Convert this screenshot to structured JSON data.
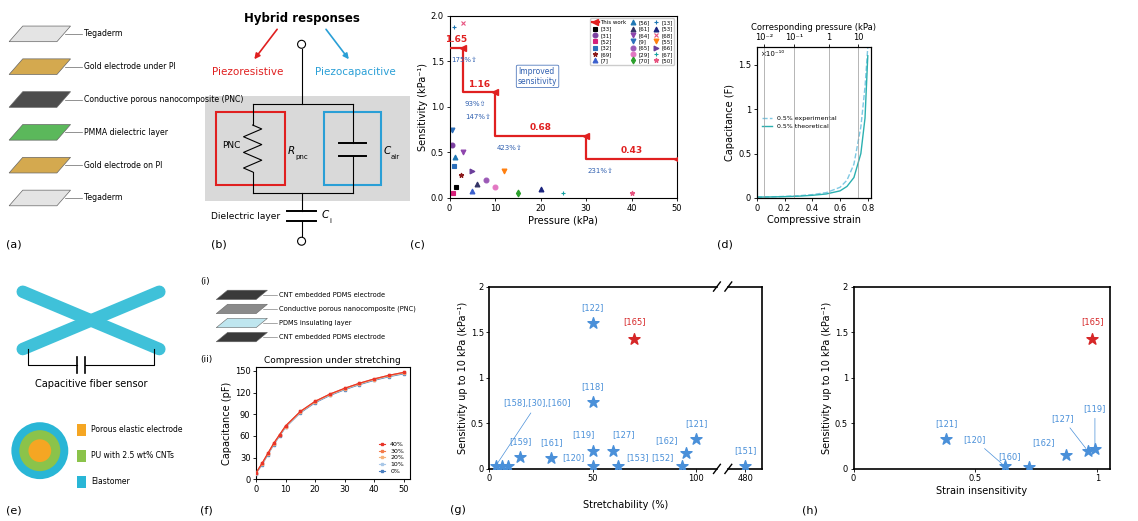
{
  "diagrams": {
    "a": {
      "panel_label": "(a)",
      "layers": [
        "Tegaderm",
        "Gold electrode under PI",
        "Conductive porous nanocomposite (PNC)",
        "PMMA dielectric layer",
        "Gold electrode on PI",
        "Tegaderm"
      ]
    },
    "b": {
      "panel_label": "(b)",
      "title": "Hybrid responses",
      "left_branch": "Piezoresistive",
      "right_branch": "Piezocapacitive",
      "resistor_box": "PNC",
      "resistor": {
        "symbol": "R",
        "subscript": "pnc"
      },
      "capacitor": {
        "symbol": "C",
        "subscript": "air"
      },
      "bottom_layer": "Dielectric layer",
      "bottom_capacitor": {
        "symbol": "C",
        "subscript": "i"
      }
    },
    "e": {
      "panel_label": "(e)",
      "title": "Capacitive fiber sensor",
      "cross_section": [
        {
          "name": "Porous elastic electrode",
          "color": "#f5a623"
        },
        {
          "name": "PU with 2.5 wt% CNTs",
          "color": "#8bc34a"
        },
        {
          "name": "Elastomer",
          "color": "#29b6d6"
        }
      ]
    },
    "f": {
      "panel_label": "(f)",
      "sub_label": "(i)",
      "layers": [
        "CNT embedded PDMS electrode",
        "Conductive porous nanocomposite (PNC)",
        "PDMS insulating layer",
        "CNT embedded PDMS electrode"
      ]
    }
  },
  "chart_data": [
    {
      "panel_label": "(c)",
      "type": "scatter",
      "xlabel": "Pressure (kPa)",
      "ylabel": "Sensitivity (kPa⁻¹)",
      "xlim": [
        0,
        50
      ],
      "xticks": [
        0,
        10,
        20,
        30,
        40,
        50
      ],
      "ylim": [
        0,
        2.0
      ],
      "yticks": [
        {
          "value": 0,
          "label": "0.0"
        },
        {
          "value": 0.5,
          "label": "0.5"
        },
        {
          "value": 1.0,
          "label": "1.0"
        },
        {
          "value": 1.5,
          "label": "1.5"
        },
        {
          "value": 2.0,
          "label": "2.0"
        }
      ],
      "legend": "upper right",
      "annotations": [
        {
          "text": "Improved\nsensitivity"
        }
      ],
      "series": [
        {
          "name": "This work",
          "type": "step",
          "color": "#e02020",
          "marker": "triangle_left",
          "data_labels": true,
          "segments": [
            {
              "from": 0,
              "to": 3,
              "value": 1.65,
              "improvement": [
                "175%⇧"
              ]
            },
            {
              "from": 3,
              "to": 10,
              "value": 1.16,
              "improvement": [
                "93%⇧",
                "147%⇧"
              ]
            },
            {
              "from": 10,
              "to": 30,
              "value": 0.68,
              "improvement": [
                "423%⇧"
              ]
            },
            {
              "from": 30,
              "to": 50,
              "value": 0.43,
              "improvement": [
                "231%⇧"
              ]
            }
          ]
        },
        {
          "name": "[33]",
          "color": "#000000",
          "marker": "square",
          "x": [
            1.5
          ],
          "values": [
            0.12
          ]
        },
        {
          "name": "[31]",
          "color": "#7b3fa0",
          "marker": "circle",
          "x": [
            0.5
          ],
          "values": [
            0.58
          ]
        },
        {
          "name": "[52]",
          "color": "#d6207a",
          "marker": "square",
          "x": [
            0.8
          ],
          "values": [
            0.05
          ]
        },
        {
          "name": "[32]",
          "color": "#2c6fbb",
          "marker": "square",
          "x": [
            1.0
          ],
          "values": [
            0.35
          ]
        },
        {
          "name": "[69]",
          "color": "#8b1a1a",
          "marker": "star",
          "x": [
            2.5
          ],
          "values": [
            0.25
          ]
        },
        {
          "name": "[7]",
          "color": "#3a5fcd",
          "marker": "triangle_up",
          "x": [
            5
          ],
          "values": [
            0.08
          ]
        },
        {
          "name": "[56]",
          "color": "#1f77b4",
          "marker": "triangle_up",
          "x": [
            1.2
          ],
          "values": [
            0.45
          ]
        },
        {
          "name": "[61]",
          "color": "#333366",
          "marker": "triangle_up",
          "x": [
            6
          ],
          "values": [
            0.15
          ]
        },
        {
          "name": "[64]",
          "color": "#8e44ad",
          "marker": "triangle_down",
          "x": [
            3
          ],
          "values": [
            0.5
          ]
        },
        {
          "name": "[9]",
          "color": "#2c6fbb",
          "marker": "triangle_down",
          "x": [
            0.5
          ],
          "values": [
            0.75
          ]
        },
        {
          "name": "[65]",
          "color": "#9b59b6",
          "marker": "circle",
          "x": [
            8
          ],
          "values": [
            0.2
          ]
        },
        {
          "name": "[29]",
          "color": "#e377c2",
          "marker": "circle",
          "x": [
            10
          ],
          "values": [
            0.12
          ]
        },
        {
          "name": "[70]",
          "color": "#2ca02c",
          "marker": "diamond",
          "x": [
            15
          ],
          "values": [
            0.05
          ]
        },
        {
          "name": "[13]",
          "color": "#1f77b4",
          "marker": "plus",
          "x": [
            1
          ],
          "values": [
            1.88
          ]
        },
        {
          "name": "[53]",
          "color": "#1a237e",
          "marker": "triangle_up",
          "x": [
            20
          ],
          "values": [
            0.1
          ]
        },
        {
          "name": "[68]",
          "color": "#e75480",
          "marker": "x",
          "x": [
            3
          ],
          "values": [
            1.92
          ]
        },
        {
          "name": "[55]",
          "color": "#ff7f0e",
          "marker": "triangle_down",
          "x": [
            12
          ],
          "values": [
            0.3
          ]
        },
        {
          "name": "[66]",
          "color": "#6a3d9a",
          "marker": "triangle_right",
          "x": [
            5
          ],
          "values": [
            0.3
          ]
        },
        {
          "name": "[67]",
          "color": "#17a2a2",
          "marker": "plus",
          "x": [
            25
          ],
          "values": [
            0.05
          ]
        },
        {
          "name": "[50]",
          "color": "#e75480",
          "marker": "star",
          "x": [
            40
          ],
          "values": [
            0.05
          ]
        }
      ]
    },
    {
      "panel_label": "(d)",
      "type": "line",
      "xlabel": "Compressive strain",
      "ylabel": "Capacitance (F)",
      "xlim": [
        0,
        0.82
      ],
      "xticks": [
        0,
        0.2,
        0.4,
        0.6,
        0.8
      ],
      "ylim": [
        0,
        1.7e-10
      ],
      "yticks": [
        {
          "value": 0,
          "label": "0"
        },
        {
          "value": 5e-11,
          "label": "0.5"
        },
        {
          "value": 1e-10,
          "label": "1"
        },
        {
          "value": 1.5e-10,
          "label": "1.5"
        }
      ],
      "multiplier": "×10⁻¹⁰",
      "top_xlabel": "Corresponding pressure (kPa)",
      "top_xticks": [
        {
          "value": 0.05,
          "label": "10⁻²"
        },
        {
          "value": 0.27,
          "label": "10⁻¹"
        },
        {
          "value": 0.52,
          "label": "1"
        },
        {
          "value": 0.73,
          "label": "10"
        }
      ],
      "grid": true,
      "legend": "center left",
      "x": [
        0,
        0.1,
        0.2,
        0.3,
        0.4,
        0.5,
        0.6,
        0.65,
        0.7,
        0.75,
        0.78,
        0.8
      ],
      "series": [
        {
          "name": "0.5% experimental",
          "color": "#7ec8e3",
          "line_style": "dashed",
          "values": [
            1e-12,
            1.3e-12,
            1.8e-12,
            2.5e-12,
            3.8e-12,
            6e-12,
            1.2e-11,
            2e-11,
            3.8e-11,
            8e-11,
            1.25e-10,
            1.7e-10
          ]
        },
        {
          "name": "0.5% theoretical",
          "color": "#2bb0b0",
          "line_style": "solid",
          "values": [
            1e-12,
            1.2e-12,
            1.5e-12,
            2e-12,
            3e-12,
            4.5e-12,
            8e-12,
            1.3e-11,
            2.3e-11,
            5e-11,
            9e-11,
            1.6e-10
          ]
        }
      ]
    },
    {
      "panel_label": "(ii)",
      "type": "line",
      "title": "Compression under stretching",
      "ylabel": "Capacitance (pF)",
      "xlim": [
        0,
        52
      ],
      "xticks": [
        0,
        10,
        20,
        30,
        40,
        50
      ],
      "ylim": [
        0,
        155
      ],
      "yticks": [
        0,
        30,
        60,
        90,
        120,
        150
      ],
      "legend": "lower right",
      "marker": "square",
      "x": [
        0,
        2,
        4,
        6,
        8,
        10,
        15,
        20,
        25,
        30,
        35,
        40,
        45,
        50
      ],
      "series": [
        {
          "name": "40%",
          "color": "#e8352a",
          "values": [
            9,
            22,
            36,
            50,
            62,
            74,
            94,
            108,
            118,
            126,
            133,
            139,
            144,
            148
          ]
        },
        {
          "name": "30%",
          "color": "#f47c4c",
          "values": [
            9,
            22,
            36,
            50,
            62,
            74,
            94,
            108,
            118,
            126,
            133,
            139,
            144,
            148
          ]
        },
        {
          "name": "20%",
          "color": "#f7b27a",
          "values": [
            9,
            21,
            35,
            49,
            61,
            73,
            93,
            107,
            117,
            125,
            132,
            138,
            143,
            147
          ]
        },
        {
          "name": "10%",
          "color": "#a9c8e8",
          "values": [
            8,
            21,
            35,
            49,
            61,
            73,
            93,
            107,
            117,
            125,
            132,
            138,
            143,
            147
          ]
        },
        {
          "name": "0%",
          "color": "#4a7fc0",
          "values": [
            8,
            20,
            34,
            48,
            60,
            72,
            92,
            106,
            116,
            124,
            131,
            137,
            142,
            146
          ]
        }
      ]
    },
    {
      "panel_label": "(g)",
      "type": "scatter",
      "xlabel": "Stretchability (%)",
      "ylabel": "Sensitivity up to 10 kPa (kPa⁻¹)",
      "xlim": [
        0,
        110
      ],
      "xticks": [
        0,
        50,
        100
      ],
      "xlim_after_break": [
        470,
        490
      ],
      "xticks_after_break": [
        480
      ],
      "ylim": [
        0,
        2
      ],
      "yticks": [
        0,
        0.5,
        1,
        1.5,
        2
      ],
      "marker": "star",
      "points": [
        {
          "label": "[122]",
          "color": "#4a90d9",
          "x": [
            50
          ],
          "values": [
            1.6
          ]
        },
        {
          "label": "[165]",
          "color": "#d62728",
          "x": [
            70
          ],
          "values": [
            1.43
          ]
        },
        {
          "label": "[118]",
          "color": "#4a90d9",
          "x": [
            50
          ],
          "values": [
            0.73
          ]
        },
        {
          "label": "[121]",
          "color": "#4a90d9",
          "x": [
            100
          ],
          "values": [
            0.33
          ]
        },
        {
          "label": "[119]",
          "color": "#4a90d9",
          "x": [
            50
          ],
          "values": [
            0.2
          ]
        },
        {
          "label": "[127]",
          "color": "#4a90d9",
          "x": [
            60
          ],
          "values": [
            0.2
          ]
        },
        {
          "label": "[162]",
          "color": "#4a90d9",
          "x": [
            95
          ],
          "values": [
            0.17
          ]
        },
        {
          "label": "[161]",
          "color": "#4a90d9",
          "x": [
            30
          ],
          "values": [
            0.12
          ]
        },
        {
          "label": "[159]",
          "color": "#4a90d9",
          "x": [
            15
          ],
          "values": [
            0.13
          ]
        },
        {
          "label": "[158],[30],[160]",
          "color": "#4a90d9",
          "x": [
            3,
            6,
            9
          ],
          "values": [
            0.03,
            0.03,
            0.03
          ]
        },
        {
          "label": "[120]",
          "color": "#4a90d9",
          "x": [
            50
          ],
          "values": [
            0.03
          ]
        },
        {
          "label": "[153]",
          "color": "#4a90d9",
          "x": [
            62
          ],
          "values": [
            0.03
          ]
        },
        {
          "label": "[152]",
          "color": "#4a90d9",
          "x": [
            93
          ],
          "values": [
            0.03
          ]
        },
        {
          "label": "[151]",
          "color": "#4a90d9",
          "x": [
            480
          ],
          "values": [
            0.03
          ]
        }
      ]
    },
    {
      "panel_label": "(h)",
      "type": "scatter",
      "xlabel": "Strain insensitivity",
      "ylabel": "Sensitivity up to 10 kPa (kPa⁻¹)",
      "xlim": [
        0,
        1.05
      ],
      "xticks": [
        0,
        0.5,
        1
      ],
      "ylim": [
        0,
        2
      ],
      "yticks": [
        0,
        0.5,
        1,
        1.5,
        2
      ],
      "marker": "star",
      "points": [
        {
          "label": "[165]",
          "color": "#d62728",
          "x": [
            0.98
          ],
          "values": [
            1.43
          ]
        },
        {
          "label": "[121]",
          "color": "#4a90d9",
          "x": [
            0.38
          ],
          "values": [
            0.33
          ]
        },
        {
          "label": "[120]",
          "color": "#4a90d9",
          "x": [
            0.62
          ],
          "values": [
            0.03
          ]
        },
        {
          "label": "[160]",
          "color": "#4a90d9",
          "x": [
            0.72
          ],
          "values": [
            0.02
          ]
        },
        {
          "label": "[162]",
          "color": "#4a90d9",
          "x": [
            0.87
          ],
          "values": [
            0.15
          ]
        },
        {
          "label": "[127]",
          "color": "#4a90d9",
          "x": [
            0.96
          ],
          "values": [
            0.2
          ]
        },
        {
          "label": "[119]",
          "color": "#4a90d9",
          "x": [
            0.99
          ],
          "values": [
            0.22
          ]
        }
      ]
    }
  ]
}
